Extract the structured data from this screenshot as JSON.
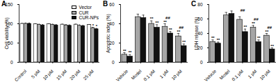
{
  "chart_data": [
    {
      "type": "bar",
      "title": "A",
      "ylabel": "Cell viability (%)",
      "categories": [
        "Control",
        "5 μM",
        "10 μM",
        "15 μM",
        "20 μM",
        "25 μM"
      ],
      "series": [
        {
          "name": "Vector",
          "color": "#ffffff",
          "values": [
            100,
            99,
            99,
            98,
            98,
            97
          ],
          "errors": [
            1,
            1,
            1,
            1,
            1,
            1
          ]
        },
        {
          "name": "CUR",
          "color": "#a6a6a6",
          "values": [
            100,
            97,
            97,
            96,
            95,
            89
          ],
          "errors": [
            2,
            2,
            2,
            2,
            2,
            2
          ],
          "annotations": [
            null,
            null,
            null,
            null,
            null,
            "*"
          ]
        },
        {
          "name": "CUR-NPs",
          "color": "#111111",
          "values": [
            100,
            96,
            96,
            95,
            94,
            86
          ],
          "errors": [
            2,
            2,
            2,
            2,
            2,
            2
          ],
          "annotations": [
            null,
            null,
            null,
            null,
            null,
            "*"
          ]
        }
      ],
      "ylim": [
        0,
        150
      ],
      "yticks": [
        0,
        50,
        100,
        150
      ],
      "legend": "top-right"
    },
    {
      "type": "bar",
      "title": "B",
      "ylabel": "Apoptotic index (%)",
      "categories": [
        "Vehicle",
        "Model",
        "0.1 μM",
        "1 μM",
        "10 μM"
      ],
      "series": [
        {
          "name": "CUR",
          "color": "#a6a6a6",
          "values": [
            8,
            47,
            40,
            37,
            27
          ],
          "errors": [
            2,
            3,
            3,
            3,
            3
          ],
          "annotations": [
            "**",
            null,
            "**",
            "**",
            "**"
          ]
        },
        {
          "name": "CUR-NPs",
          "color": "#111111",
          "values": [
            6,
            46,
            36,
            30,
            17
          ],
          "errors": [
            2,
            3,
            3,
            2,
            2
          ],
          "annotations": [
            "**",
            null,
            "**",
            "**",
            "**"
          ]
        }
      ],
      "annotations": [
        {
          "category": "1 μM",
          "text": "##"
        },
        {
          "category": "10 μM",
          "text": "##"
        }
      ],
      "ylim": [
        0,
        60
      ],
      "yticks": [
        0,
        20,
        40,
        60
      ]
    },
    {
      "type": "bar",
      "title": "C",
      "ylabel": "LDH release (%)",
      "categories": [
        "Vehicle",
        "Model",
        "0.1 μM",
        "1 μM",
        "10 μM"
      ],
      "series": [
        {
          "name": "CUR",
          "color": "#a6a6a6",
          "values": [
            28,
            65,
            59,
            48,
            37
          ],
          "errors": [
            3,
            4,
            4,
            3,
            3
          ],
          "annotations": [
            "**",
            null,
            null,
            "**",
            "**"
          ]
        },
        {
          "name": "CUR-NPs",
          "color": "#111111",
          "values": [
            26,
            67,
            42,
            28,
            18
          ],
          "errors": [
            2,
            4,
            4,
            3,
            2
          ],
          "annotations": [
            "**",
            null,
            "**",
            "**",
            "**"
          ]
        }
      ],
      "annotations": [
        {
          "category": "0.1 μM",
          "text": "##"
        },
        {
          "category": "1 μM",
          "text": "##"
        },
        {
          "category": "10 μM",
          "text": "##"
        }
      ],
      "ylim": [
        0,
        80
      ],
      "yticks": [
        0,
        20,
        40,
        60,
        80
      ]
    }
  ]
}
